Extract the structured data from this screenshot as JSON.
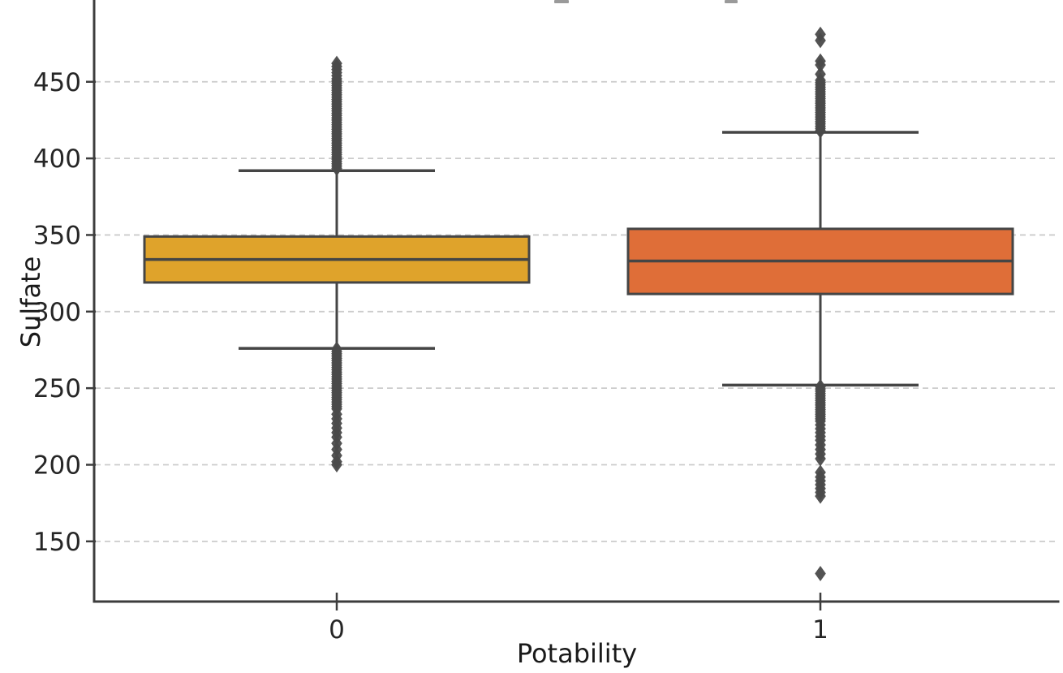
{
  "chart_data": {
    "type": "box",
    "title": "",
    "xlabel": "Potability",
    "ylabel": "Sulfate",
    "categories": [
      "0",
      "1"
    ],
    "yticks": [
      450,
      400,
      350,
      300,
      250,
      200,
      150
    ],
    "ylim": [
      110.7,
      503.4
    ],
    "grid": "horizontal dashed, light gray, on",
    "legend": "none",
    "grid_color": "#cbcbcb",
    "line_color": "#454545",
    "flier_color": "#4a4a4a",
    "tick_label_color": "#262626",
    "series": [
      {
        "name": "0",
        "box_color": "#dfa32b",
        "q1": 319,
        "median": 334,
        "q3": 349,
        "whisker_low": 276,
        "whisker_high": 392,
        "outliers_high": [
          462,
          460,
          458,
          456,
          454,
          452,
          450.5,
          449,
          447.5,
          446,
          444.5,
          443,
          441.5,
          440,
          438.5,
          437,
          435.5,
          434,
          432.5,
          431,
          429.5,
          428,
          426.5,
          425,
          423.5,
          422,
          420.5,
          419,
          417.5,
          416,
          414.5,
          413,
          411.5,
          410,
          408.5,
          407,
          405.5,
          404,
          402.5,
          401,
          399.5,
          398,
          396.5,
          395,
          393.5
        ],
        "outliers_low": [
          275.5,
          274,
          272.5,
          271,
          269.5,
          268,
          266.5,
          265,
          263.5,
          262,
          260.5,
          259,
          257.5,
          256,
          254.5,
          253,
          251.5,
          250,
          248.5,
          247,
          245.5,
          244,
          242.5,
          241,
          239.5,
          238,
          236.5,
          233,
          230,
          227,
          224,
          221,
          218,
          214,
          210,
          206,
          202,
          200
        ]
      },
      {
        "name": "1",
        "box_color": "#df6e38",
        "q1": 311.5,
        "median": 333,
        "q3": 354,
        "whisker_low": 252,
        "whisker_high": 417,
        "outliers_high": [
          481,
          477,
          463.5,
          461,
          455,
          451,
          449.5,
          448,
          446.5,
          445,
          443.5,
          442,
          440.5,
          439,
          437.5,
          436,
          434.5,
          433,
          431.5,
          430,
          428.5,
          427,
          425.5,
          424,
          422.5,
          421,
          419.5,
          418
        ],
        "outliers_low": [
          251,
          249.5,
          248,
          246.5,
          245,
          243.5,
          242,
          240.5,
          239,
          237.5,
          236,
          234.5,
          233,
          231.5,
          230,
          228.5,
          226,
          223.5,
          221,
          218.5,
          216,
          213,
          210,
          207,
          204,
          195,
          192,
          189.5,
          187,
          184.5,
          182,
          179.5,
          129
        ]
      }
    ]
  }
}
